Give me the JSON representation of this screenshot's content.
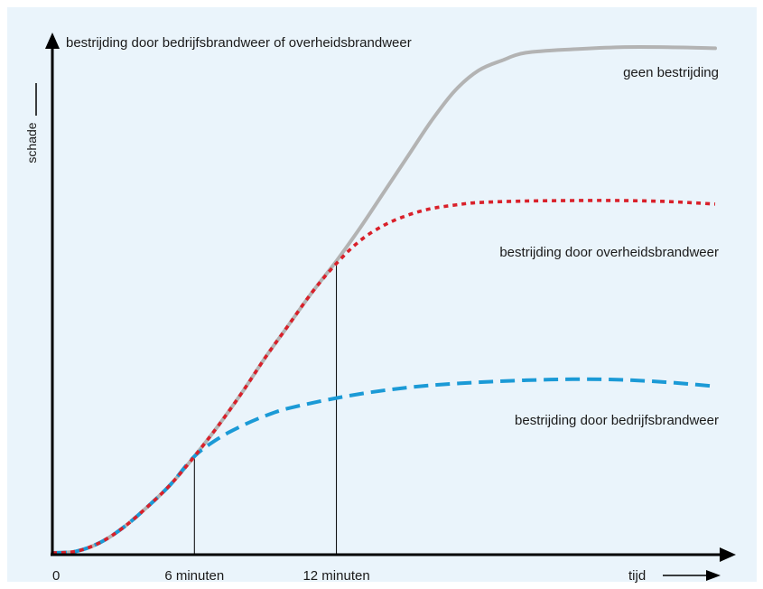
{
  "chart_data": {
    "type": "line",
    "title": "bestrijding door bedrijfsbrandweer of overheidsbrandweer",
    "ylabel": "schade",
    "xlabel": "tijd",
    "x_ticks": [
      "0",
      "6 minuten",
      "12 minuten"
    ],
    "x_tick_values": [
      0,
      6,
      12
    ],
    "xlim": [
      0,
      28
    ],
    "ylim": [
      0,
      100
    ],
    "grid": false,
    "series": [
      {
        "name": "geen bestrijding",
        "color": "#b3b3b3",
        "style": "solid",
        "x": [
          0,
          1,
          2,
          3,
          4,
          5,
          6,
          7,
          8,
          9,
          10,
          11,
          12,
          13,
          14,
          15,
          16,
          17,
          18,
          19,
          20,
          22,
          24,
          26,
          28
        ],
        "y": [
          0,
          0.3,
          2,
          5,
          9,
          13.5,
          19,
          25,
          31.5,
          38.5,
          45,
          51.5,
          57.5,
          64,
          71,
          78,
          85,
          91,
          95,
          97,
          98.5,
          99.2,
          99.6,
          99.6,
          99.4
        ]
      },
      {
        "name": "bestrijding door overheidsbrandweer",
        "color": "#d9202a",
        "style": "dotted",
        "x": [
          0,
          1,
          2,
          3,
          4,
          5,
          6,
          7,
          8,
          9,
          10,
          11,
          12,
          13,
          14,
          15,
          16,
          17,
          18,
          20,
          22,
          24,
          26,
          28
        ],
        "y": [
          0,
          0.3,
          2,
          5,
          9,
          13.5,
          19,
          25,
          31.5,
          38.5,
          45,
          51.5,
          57,
          61.5,
          64.5,
          66.5,
          67.8,
          68.5,
          69,
          69.3,
          69.4,
          69.4,
          69.2,
          68.7
        ]
      },
      {
        "name": "bestrijding door bedrijfsbrandweer",
        "color": "#1b9ad6",
        "style": "dashed",
        "x": [
          0,
          1,
          2,
          3,
          4,
          5,
          6,
          7,
          8,
          9,
          10,
          12,
          14,
          16,
          18,
          20,
          22,
          24,
          26,
          28
        ],
        "y": [
          0,
          0.3,
          2,
          5,
          9,
          13.5,
          19,
          22.5,
          25,
          27,
          28.5,
          30.5,
          32,
          33,
          33.6,
          34,
          34.2,
          34.1,
          33.6,
          32.8
        ]
      }
    ],
    "markers": [
      {
        "x": 6,
        "label": "6 minuten"
      },
      {
        "x": 12,
        "label": "12 minuten"
      }
    ]
  },
  "colors": {
    "background": "#eaf4fb",
    "axis": "#000000"
  }
}
